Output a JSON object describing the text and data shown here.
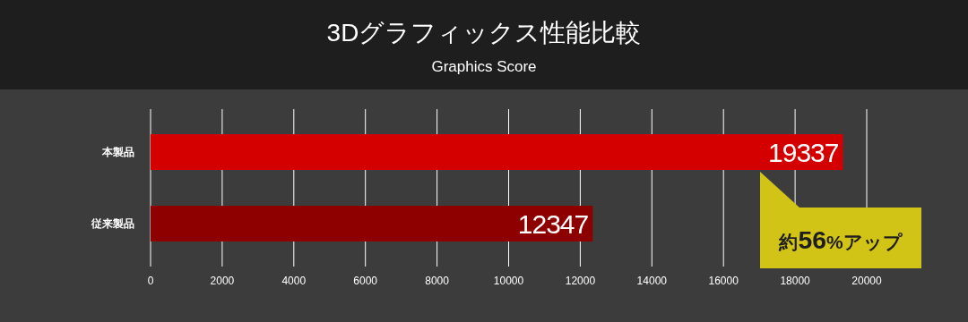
{
  "chart_data": {
    "type": "bar",
    "orientation": "horizontal",
    "title": "3Dグラフィックス性能比較",
    "subtitle": "Graphics Score",
    "categories": [
      "本製品",
      "従来製品"
    ],
    "values": [
      19337,
      12347
    ],
    "colors": [
      "#d40000",
      "#8e0000"
    ],
    "xlim": [
      0,
      20000
    ],
    "xticks": [
      0,
      2000,
      4000,
      6000,
      8000,
      10000,
      12000,
      14000,
      16000,
      18000,
      20000
    ],
    "grid": "x",
    "data_labels": true,
    "annotations": [
      "約**56**%アップ"
    ]
  }
}
